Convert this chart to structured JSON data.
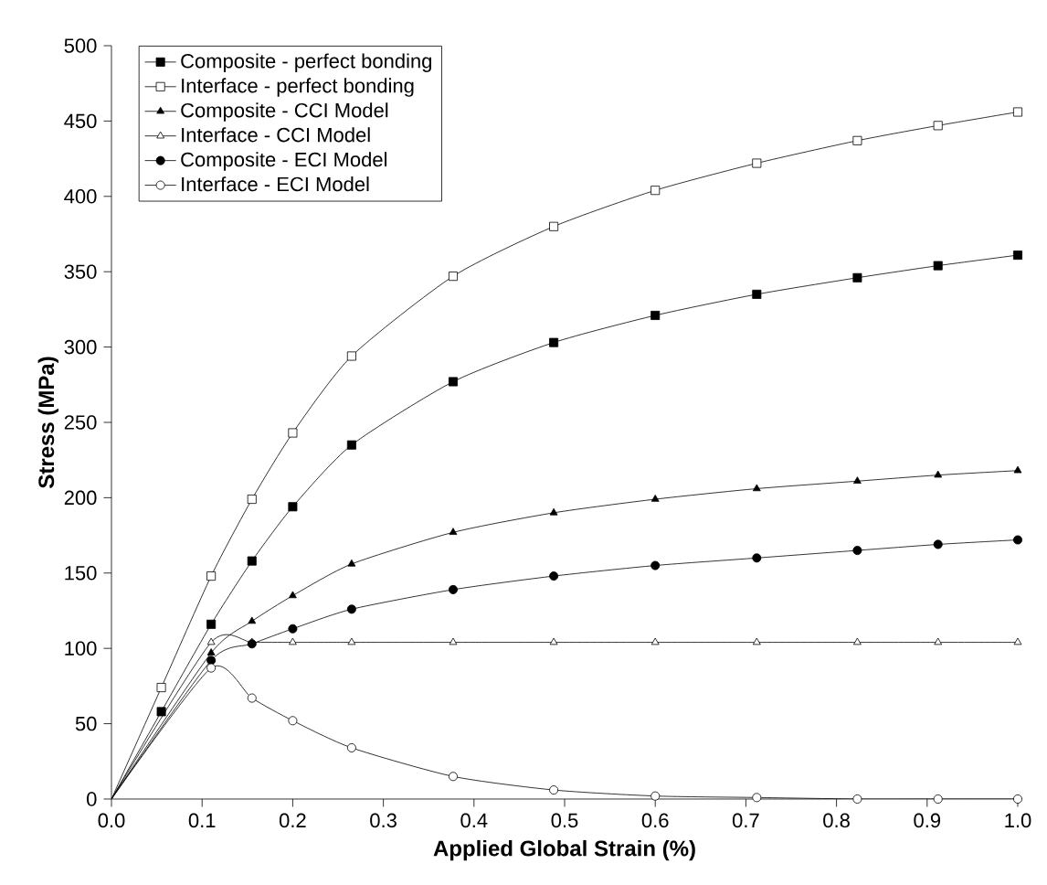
{
  "chart_data": {
    "type": "line",
    "xlabel": "Applied Global Strain (%)",
    "ylabel": "Stress (MPa)",
    "xlim": [
      0,
      1
    ],
    "ylim": [
      0,
      500
    ],
    "xticks": [
      {
        "value": 0,
        "label": "0.0"
      },
      {
        "value": 0.1,
        "label": "0.1"
      },
      {
        "value": 0.2,
        "label": "0.2"
      },
      {
        "value": 0.3,
        "label": "0.3"
      },
      {
        "value": 0.4,
        "label": "0.4"
      },
      {
        "value": 0.5,
        "label": "0.5"
      },
      {
        "value": 0.6,
        "label": "0.6"
      },
      {
        "value": 0.7,
        "label": "0.7"
      },
      {
        "value": 0.8,
        "label": "0.8"
      },
      {
        "value": 0.9,
        "label": "0.9"
      },
      {
        "value": 1,
        "label": "1.0"
      }
    ],
    "yticks": [
      0,
      50,
      100,
      150,
      200,
      250,
      300,
      350,
      400,
      450,
      500
    ],
    "grid": false,
    "legend": "top left",
    "line_style": "solid",
    "series": [
      {
        "name": "Composite - perfect bonding",
        "color": "#000000",
        "marker": "square",
        "x": [
          0,
          0.055,
          0.11,
          0.155,
          0.2,
          0.265,
          0.377,
          0.488,
          0.6,
          0.712,
          0.823,
          0.912,
          1.0
        ],
        "values": [
          0,
          58,
          116,
          158,
          194,
          235,
          277,
          303,
          321,
          335,
          346,
          354,
          361
        ]
      },
      {
        "name": "Interface - perfect bonding",
        "color": "#ffffff",
        "marker": "square",
        "x": [
          0,
          0.055,
          0.11,
          0.155,
          0.2,
          0.265,
          0.377,
          0.488,
          0.6,
          0.712,
          0.823,
          0.912,
          1.0
        ],
        "values": [
          0,
          74,
          148,
          199,
          243,
          294,
          347,
          380,
          404,
          422,
          437,
          447,
          456
        ]
      },
      {
        "name": "Composite - CCI Model",
        "color": "#000000",
        "marker": "triangle",
        "x": [
          0,
          0.11,
          0.155,
          0.2,
          0.265,
          0.377,
          0.488,
          0.6,
          0.712,
          0.823,
          0.912,
          1.0
        ],
        "values": [
          0,
          97,
          118,
          135,
          156,
          177,
          190,
          199,
          206,
          211,
          215,
          218
        ]
      },
      {
        "name": "Interface - CCI Model",
        "color": "#ffffff",
        "marker": "triangle",
        "x": [
          0,
          0.11,
          0.155,
          0.2,
          0.265,
          0.377,
          0.488,
          0.6,
          0.712,
          0.823,
          0.912,
          1.0
        ],
        "values": [
          0,
          104,
          104,
          104,
          104,
          104,
          104,
          104,
          104,
          104,
          104,
          104
        ]
      },
      {
        "name": "Composite - ECI Model",
        "color": "#000000",
        "marker": "circle",
        "x": [
          0,
          0.11,
          0.155,
          0.2,
          0.265,
          0.377,
          0.488,
          0.6,
          0.712,
          0.823,
          0.912,
          1.0
        ],
        "values": [
          0,
          92,
          103,
          113,
          126,
          139,
          148,
          155,
          160,
          165,
          169,
          172
        ]
      },
      {
        "name": "Interface - ECI Model",
        "color": "#ffffff",
        "marker": "circle",
        "x": [
          0,
          0.11,
          0.155,
          0.2,
          0.265,
          0.377,
          0.488,
          0.6,
          0.712,
          0.823,
          0.912,
          1.0
        ],
        "values": [
          0,
          87,
          67,
          52,
          34,
          15,
          6,
          2,
          1,
          0,
          0,
          0
        ]
      }
    ]
  }
}
